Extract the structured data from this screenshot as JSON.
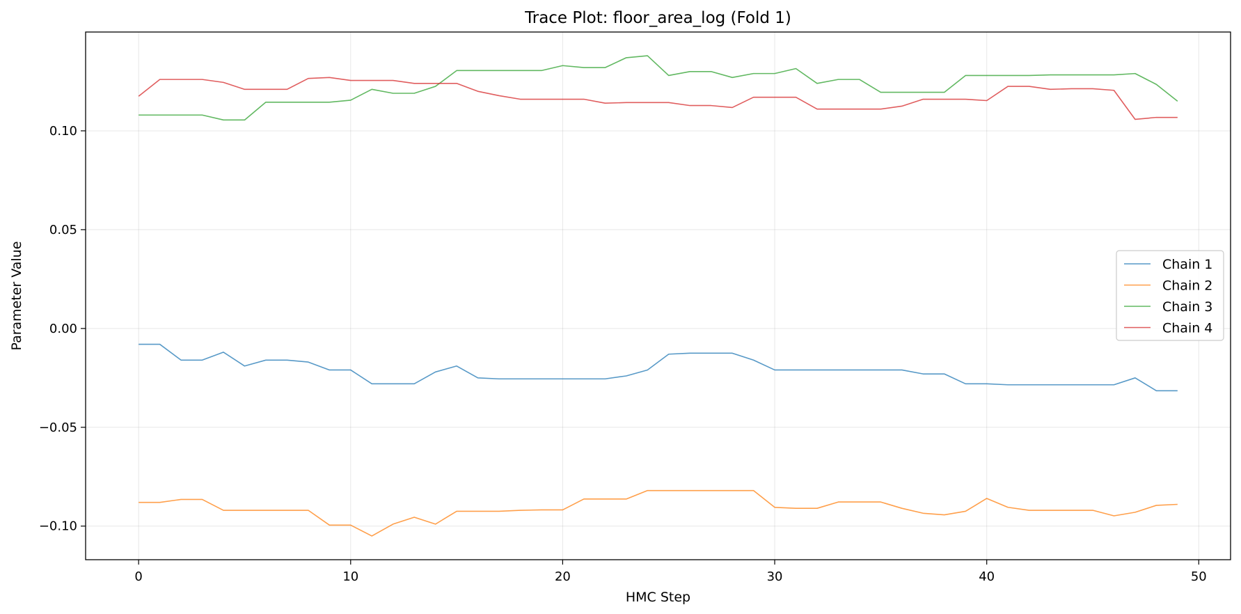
{
  "chart_data": {
    "type": "line",
    "title": "Trace Plot: floor_area_log (Fold 1)",
    "xlabel": "HMC Step",
    "ylabel": "Parameter Value",
    "xlim": [
      -2.5,
      51.5
    ],
    "ylim": [
      -0.117,
      0.15
    ],
    "xticks": [
      0,
      10,
      20,
      30,
      40,
      50
    ],
    "yticks": [
      -0.1,
      -0.05,
      0.0,
      0.05,
      0.1
    ],
    "ytick_labels": [
      "−0.10",
      "−0.05",
      "0.00",
      "0.05",
      "0.10"
    ],
    "grid": true,
    "legend_position": "center-right",
    "x": [
      0,
      1,
      2,
      3,
      4,
      5,
      6,
      7,
      8,
      9,
      10,
      11,
      12,
      13,
      14,
      15,
      16,
      17,
      18,
      19,
      20,
      21,
      22,
      23,
      24,
      25,
      26,
      27,
      28,
      29,
      30,
      31,
      32,
      33,
      34,
      35,
      36,
      37,
      38,
      39,
      40,
      41,
      42,
      43,
      44,
      45,
      46,
      47,
      48,
      49
    ],
    "series": [
      {
        "name": "Chain 1",
        "color": "#1f77b4",
        "values": [
          -0.008,
          -0.008,
          -0.016,
          -0.016,
          -0.012,
          -0.019,
          -0.016,
          -0.016,
          -0.017,
          -0.021,
          -0.021,
          -0.028,
          -0.028,
          -0.028,
          -0.022,
          -0.019,
          -0.025,
          -0.0255,
          -0.0255,
          -0.0255,
          -0.0255,
          -0.0255,
          -0.0255,
          -0.024,
          -0.021,
          -0.013,
          -0.0125,
          -0.0125,
          -0.0125,
          -0.016,
          -0.021,
          -0.021,
          -0.021,
          -0.021,
          -0.021,
          -0.021,
          -0.021,
          -0.023,
          -0.023,
          -0.028,
          -0.028,
          -0.0285,
          -0.0285,
          -0.0285,
          -0.0285,
          -0.0285,
          -0.0285,
          -0.025,
          -0.0315,
          -0.0315
        ]
      },
      {
        "name": "Chain 2",
        "color": "#ff7f0e",
        "values": [
          -0.088,
          -0.088,
          -0.0865,
          -0.0865,
          -0.092,
          -0.092,
          -0.092,
          -0.092,
          -0.092,
          -0.0995,
          -0.0995,
          -0.105,
          -0.099,
          -0.0955,
          -0.099,
          -0.0925,
          -0.0925,
          -0.0925,
          -0.092,
          -0.0918,
          -0.0918,
          -0.0863,
          -0.0863,
          -0.0863,
          -0.082,
          -0.082,
          -0.082,
          -0.082,
          -0.082,
          -0.082,
          -0.0905,
          -0.091,
          -0.091,
          -0.0878,
          -0.0878,
          -0.0878,
          -0.091,
          -0.0935,
          -0.0943,
          -0.0925,
          -0.086,
          -0.0905,
          -0.092,
          -0.092,
          -0.092,
          -0.092,
          -0.0948,
          -0.093,
          -0.0895,
          -0.089
        ]
      },
      {
        "name": "Chain 3",
        "color": "#2ca02c",
        "values": [
          0.108,
          0.108,
          0.108,
          0.108,
          0.1055,
          0.1055,
          0.1145,
          0.1145,
          0.1145,
          0.1145,
          0.1155,
          0.121,
          0.119,
          0.119,
          0.1225,
          0.1305,
          0.1305,
          0.1305,
          0.1305,
          0.1305,
          0.133,
          0.132,
          0.132,
          0.137,
          0.138,
          0.128,
          0.13,
          0.13,
          0.127,
          0.129,
          0.129,
          0.1315,
          0.124,
          0.126,
          0.126,
          0.1195,
          0.1195,
          0.1195,
          0.1195,
          0.128,
          0.128,
          0.128,
          0.128,
          0.1283,
          0.1283,
          0.1283,
          0.1283,
          0.129,
          0.1235,
          0.115
        ]
      },
      {
        "name": "Chain 4",
        "color": "#d62728",
        "values": [
          0.1175,
          0.126,
          0.126,
          0.126,
          0.1245,
          0.121,
          0.121,
          0.121,
          0.1265,
          0.127,
          0.1255,
          0.1255,
          0.1255,
          0.124,
          0.124,
          0.124,
          0.12,
          0.1178,
          0.116,
          0.116,
          0.116,
          0.116,
          0.114,
          0.1143,
          0.1143,
          0.1143,
          0.1128,
          0.1128,
          0.1118,
          0.117,
          0.117,
          0.117,
          0.111,
          0.111,
          0.111,
          0.111,
          0.1125,
          0.116,
          0.116,
          0.116,
          0.1153,
          0.1225,
          0.1225,
          0.121,
          0.1213,
          0.1213,
          0.1205,
          0.1058,
          0.1068,
          0.1068
        ]
      }
    ]
  }
}
